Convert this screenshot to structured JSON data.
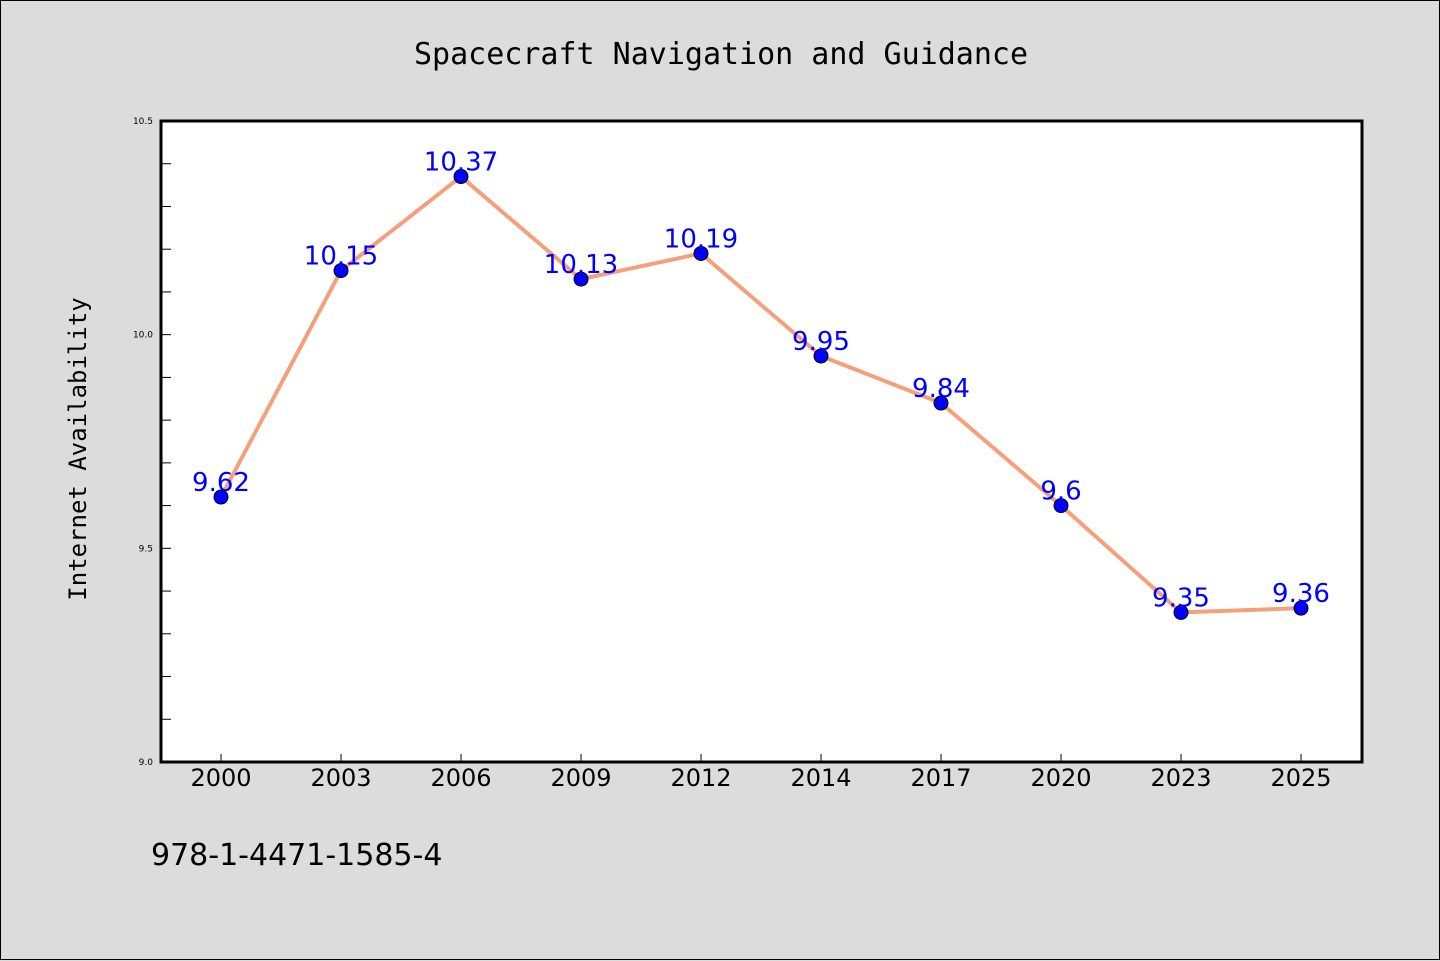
{
  "chart_data": {
    "type": "line",
    "title": "Spacecraft Navigation and Guidance",
    "xlabel": "",
    "ylabel": "Internet Availability",
    "categories": [
      "2000",
      "2003",
      "2006",
      "2009",
      "2012",
      "2014",
      "2017",
      "2020",
      "2023",
      "2025"
    ],
    "series": [
      {
        "values": [
          9.62,
          10.15,
          10.37,
          10.13,
          10.19,
          9.95,
          9.84,
          9.6,
          9.35,
          9.36
        ],
        "data_labels": [
          "9.62",
          "10.15",
          "10.37",
          "10.13",
          "10.19",
          "9.95",
          "9.84",
          "9.6",
          "9.35",
          "9.36"
        ]
      }
    ],
    "ylim": [
      9.0,
      10.5
    ],
    "y_ticks": [
      {
        "value": 9.0,
        "label": "9.0"
      },
      {
        "value": 9.5,
        "label": "9.5"
      },
      {
        "value": 10.0,
        "label": "10.0"
      },
      {
        "value": 10.5,
        "label": "10.5"
      }
    ],
    "y_minor_step": 0.1,
    "grid": false,
    "legend": "none",
    "colors": {
      "line": "#f4a07a",
      "marker": "#0000ff",
      "data_label": "#0000ff",
      "background": "#dcdcdc",
      "plot_background": "#ffffff"
    }
  },
  "footnote": "978-1-4471-1585-4"
}
